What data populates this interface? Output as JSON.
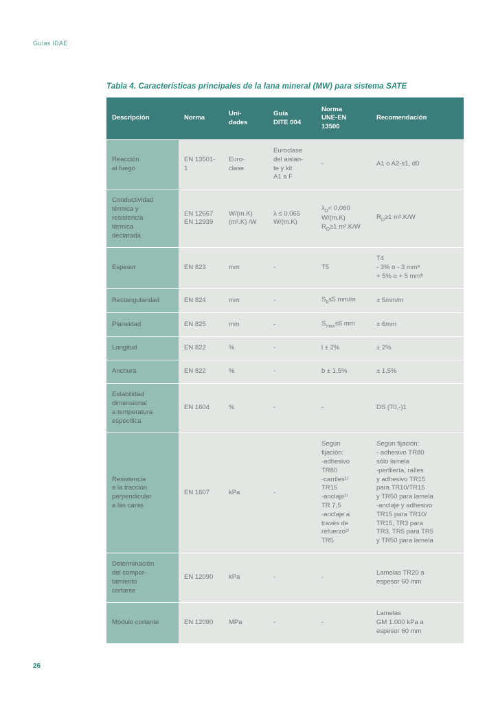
{
  "header": {
    "label": "Guías IDAE"
  },
  "table": {
    "title": "Tabla 4. Características principales de la lana mineral (MW) para sistema SATE",
    "columns": [
      {
        "label": "Descripción"
      },
      {
        "label": "Norma"
      },
      {
        "label": "Uni-\ndades"
      },
      {
        "label": "Guía\nDITE 004"
      },
      {
        "label": "Norma\nUNE-EN\n13500"
      },
      {
        "label": "Recomendación"
      }
    ],
    "rows": [
      {
        "desc": "Reacción\nal fuego",
        "norma": "EN 13501-1",
        "uni": "Euro-\nclase",
        "dite": "Euroclase\ndel aislan-\nte y kit\nA1 a F",
        "une": "-",
        "rec": "A1 o A2-s1, d0"
      },
      {
        "desc": "Conductividad\ntérmica y\nresistencia\ntérmica\ndeclarada",
        "norma": "EN 12667\nEN 12939",
        "uni": "W/(m.K)\n(m².K) /W",
        "dite": "λ ≤ 0,065\nW/(m.K)",
        "une": "λ_D< 0,060\nW/(m.K)\nR_D≥1 m².K/W",
        "rec": "R_D≥1 m².K/W"
      },
      {
        "desc": "Espesor",
        "norma": "EN 823",
        "uni": "mm",
        "dite": "-",
        "une": "T5",
        "rec": "T4\n- 3% o - 3 mmᵃ\n+ 5% o + 5 mmᵇ"
      },
      {
        "desc": "Rectangularidad",
        "norma": "EN 824",
        "uni": "mm",
        "dite": "-",
        "une": "S_b≤5 mm/m",
        "rec": "± 5mm/m"
      },
      {
        "desc": "Planeidad",
        "norma": "EN 825",
        "uni": "mm",
        "dite": "-",
        "une": "S_max≤6 mm",
        "rec": "± 6mm"
      },
      {
        "desc": "Longitud",
        "norma": "EN 822",
        "uni": "%",
        "dite": "-",
        "une": "l ± 2%",
        "rec": "± 2%"
      },
      {
        "desc": "Anchura",
        "norma": "EN 822",
        "uni": "%",
        "dite": "-",
        "une": "b ± 1,5%",
        "rec": "± 1,5%"
      },
      {
        "desc": "Estabilidad\ndimensional\na temperatura\nespecífica",
        "norma": "EN 1604",
        "uni": "%",
        "dite": "-",
        "une": "-",
        "rec": "DS (70,-)1"
      },
      {
        "desc": "Resistencia\na la tracción\nperpendicular\na las caras",
        "norma": "EN 1607",
        "uni": "kPa",
        "dite": "-",
        "une": "Según\nfijación:\n-adhesivo\nTR80\n-carriles¹⁾\nTR15\n-anclaje¹⁾\nTR 7,5\n-anclaje a\ntravés de\nrefuerzo²⁾\nTR5",
        "rec": "Según fijación:\n- adhesivo TR80\nsólo lamela\n-perfilería, raíles\ny adhesivo TR15\npara TR10/TR15\ny TR50 para lamela\n-anclaje y adhesivo\nTR15 para TR10/\nTR15, TR3 para\nTR3, TR5 para TR5\ny TR50 para lamela"
      },
      {
        "desc": "Determinación\ndel compor-\ntamiento\ncortante",
        "norma": "EN 12090",
        "uni": "kPa",
        "dite": "-",
        "une": "-",
        "rec": "Lamelas TR20 a\nespesor 60 mm"
      },
      {
        "desc": "Módulo cortante",
        "norma": "EN 12090",
        "uni": "MPa",
        "dite": "-",
        "une": "-",
        "rec": "Lamelas\nGM 1.000 kPa a\nespesor 60 mm"
      }
    ]
  },
  "page_number": "26"
}
